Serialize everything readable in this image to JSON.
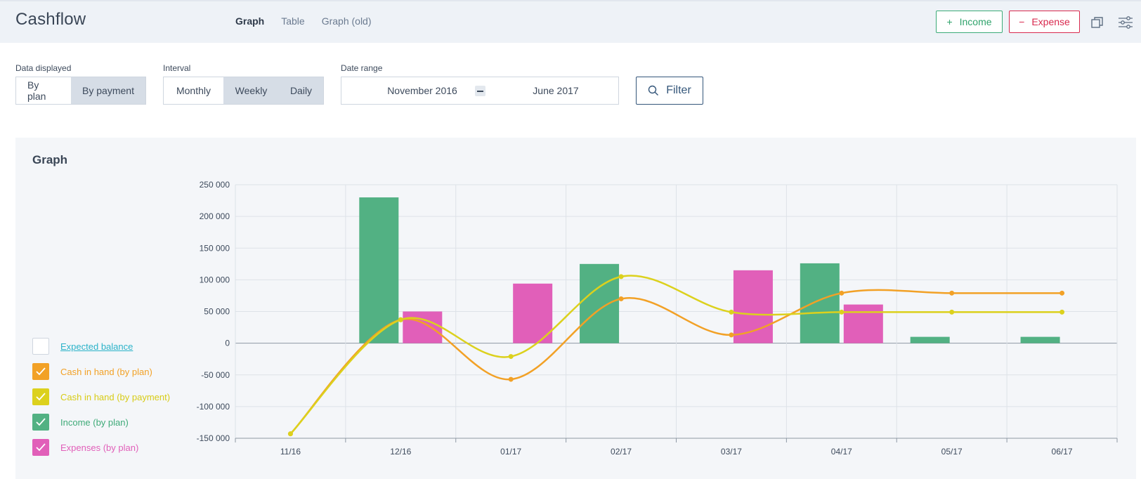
{
  "header": {
    "title": "Cashflow",
    "tabs": [
      {
        "label": "Graph",
        "active": true
      },
      {
        "label": "Table",
        "active": false
      },
      {
        "label": "Graph (old)",
        "active": false
      }
    ],
    "income_btn": "Income",
    "expense_btn": "Expense",
    "icons": [
      "copy-icon",
      "settings-sliders-icon"
    ]
  },
  "filters": {
    "data_displayed": {
      "label": "Data displayed",
      "options": [
        "By plan",
        "By payment"
      ],
      "selected": "By payment"
    },
    "interval": {
      "label": "Interval",
      "options": [
        "Monthly",
        "Weekly",
        "Daily"
      ],
      "selected": [
        "Weekly",
        "Daily"
      ]
    },
    "date_range": {
      "label": "Date range",
      "from": "November 2016",
      "to": "June 2017"
    },
    "filter_btn": "Filter"
  },
  "graph": {
    "title": "Graph",
    "legend": [
      {
        "label": "Expected balance",
        "checked": false,
        "color": "#2bb3c9",
        "link": true
      },
      {
        "label": "Cash in hand (by plan)",
        "checked": true,
        "color": "#f2a126"
      },
      {
        "label": "Cash in hand (by payment)",
        "checked": true,
        "color": "#dcd11d"
      },
      {
        "label": "Income (by plan)",
        "checked": true,
        "color": "#52b183"
      },
      {
        "label": "Expenses (by plan)",
        "checked": true,
        "color": "#e15fb9"
      }
    ]
  },
  "chart_data": {
    "type": "bar",
    "categories": [
      "11/16",
      "12/16",
      "01/17",
      "02/17",
      "03/17",
      "04/17",
      "05/17",
      "06/17"
    ],
    "ylim": [
      -150000,
      250000
    ],
    "yticks": [
      250000,
      200000,
      150000,
      100000,
      50000,
      0,
      -50000,
      -100000,
      -150000
    ],
    "ytick_labels": [
      "250 000",
      "200 000",
      "150 000",
      "100 000",
      "50 000",
      "0",
      "-50 000",
      "-100 000",
      "-150 000"
    ],
    "grid": true,
    "series": [
      {
        "name": "Income (by plan)",
        "kind": "bar",
        "color": "#52b183",
        "values": [
          0,
          230000,
          0,
          125000,
          0,
          126000,
          10000,
          10000
        ]
      },
      {
        "name": "Expenses (by plan)",
        "kind": "bar",
        "color": "#e15fb9",
        "values": [
          0,
          50000,
          94000,
          0,
          115000,
          61000,
          0,
          0
        ]
      },
      {
        "name": "Cash in hand (by plan)",
        "kind": "line",
        "color": "#f2a126",
        "values": [
          -143000,
          37000,
          -57000,
          70000,
          13000,
          79000,
          79000,
          79000
        ]
      },
      {
        "name": "Cash in hand (by payment)",
        "kind": "line",
        "color": "#dcd11d",
        "values": [
          -143000,
          37000,
          -21000,
          105000,
          49000,
          49000,
          49000,
          49000
        ]
      }
    ]
  }
}
